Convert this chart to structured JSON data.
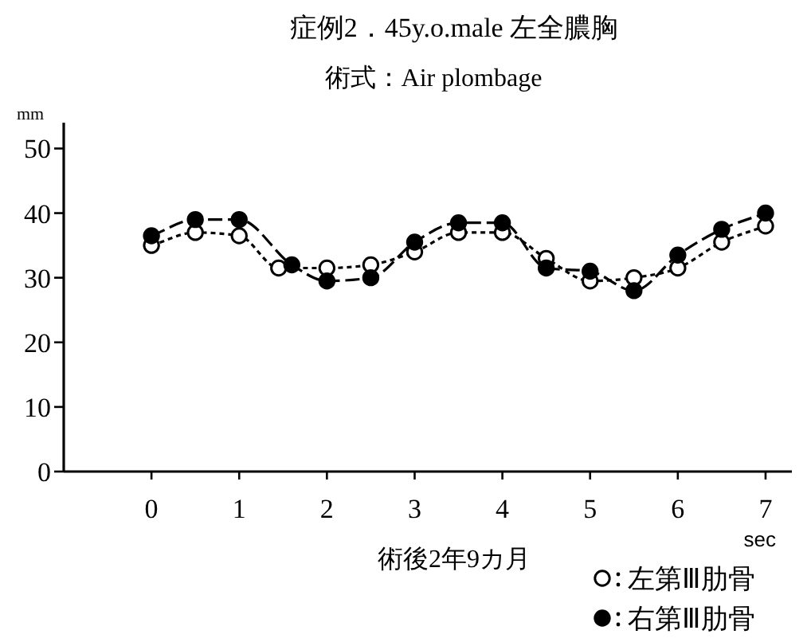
{
  "chart_data": {
    "type": "line",
    "title": "症例2．45y.o.male 左全膿胸",
    "subtitle": "術式：Air plombage",
    "xlabel": "sec",
    "ylabel": "mm",
    "annotations": [
      "術後2年9カ月"
    ],
    "xlim": [
      -1,
      7.3
    ],
    "ylim": [
      0,
      54
    ],
    "xticks": [
      0,
      1,
      2,
      3,
      4,
      5,
      6,
      7
    ],
    "yticks": [
      0,
      10,
      20,
      30,
      40,
      50
    ],
    "grid": false,
    "legend": "bottom right",
    "marker": "circle",
    "series": [
      {
        "name": "左第Ⅲ肋骨",
        "color": "#ffffff",
        "line_style": "dotted",
        "x": [
          0,
          0.5,
          1,
          1.45,
          2,
          2.5,
          3,
          3.5,
          4,
          4.5,
          5,
          5.5,
          6,
          6.5,
          7
        ],
        "values": [
          35,
          37,
          36.5,
          31.5,
          31.5,
          32,
          34,
          37,
          37,
          33,
          29.5,
          30,
          31.5,
          35.5,
          38
        ]
      },
      {
        "name": "右第Ⅲ肋骨",
        "color": "#000000",
        "line_style": "dashed",
        "x": [
          0,
          0.5,
          1,
          1.6,
          2,
          2.5,
          3,
          3.5,
          4,
          4.5,
          5,
          5.5,
          6,
          6.5,
          7
        ],
        "values": [
          36.5,
          39,
          39,
          32,
          29.5,
          30,
          35.5,
          38.5,
          38.5,
          31.5,
          31,
          28,
          33.5,
          37.5,
          40
        ]
      }
    ]
  }
}
